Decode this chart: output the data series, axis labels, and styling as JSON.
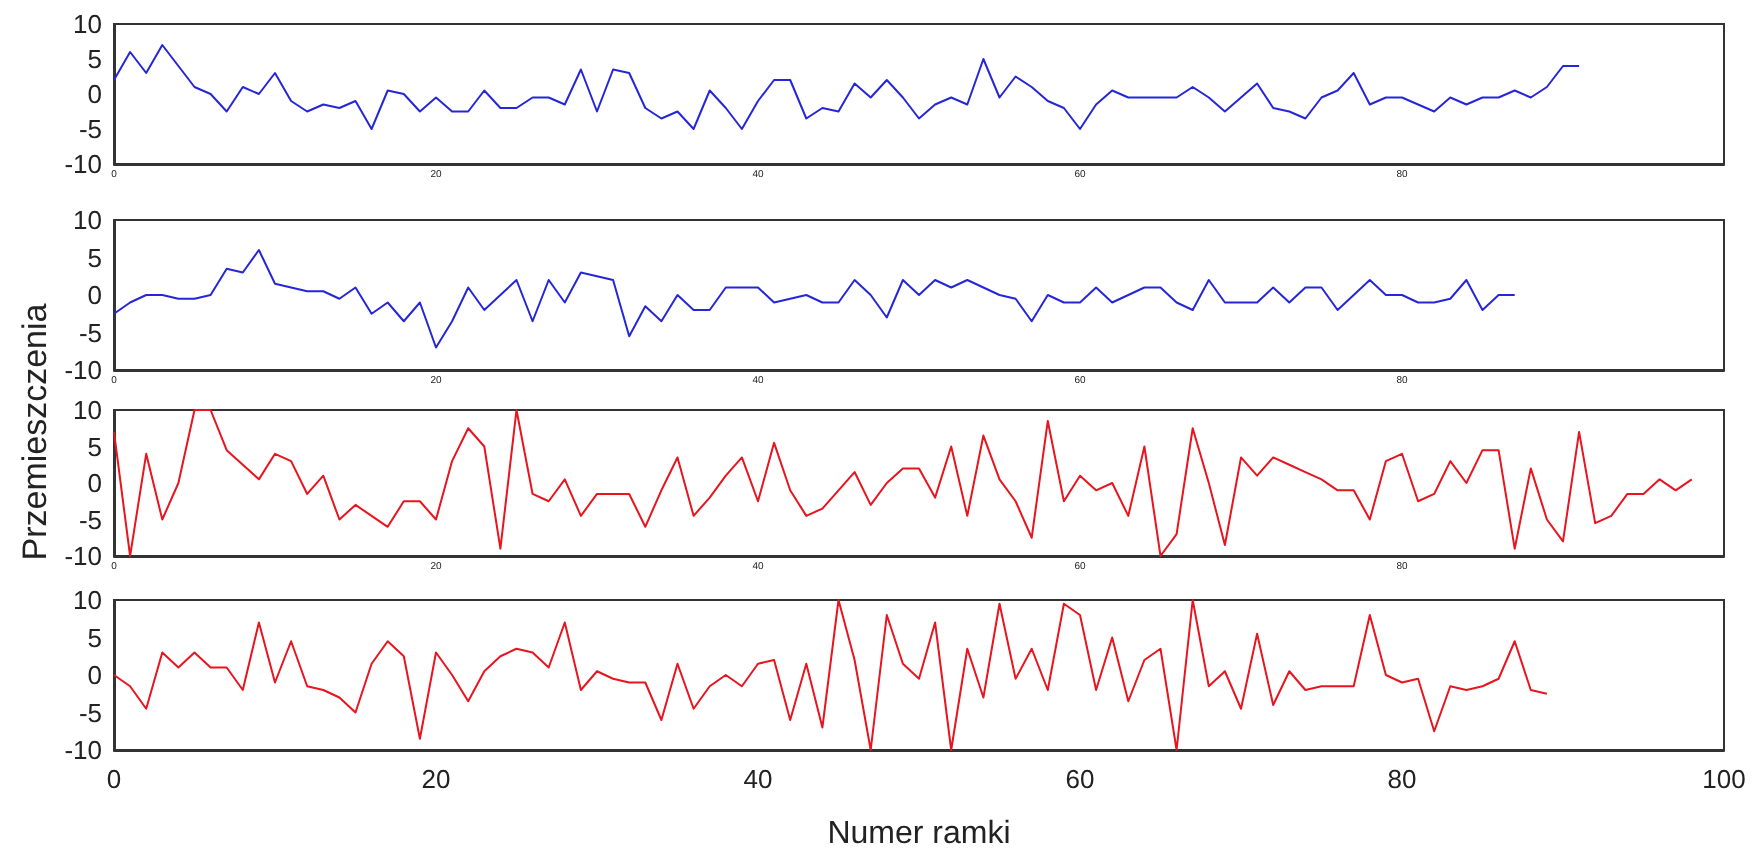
{
  "chart_data": [
    {
      "type": "line",
      "ylabel": "Przemieszczenia",
      "xlim": [
        0,
        100
      ],
      "xticks": [
        0,
        20,
        40,
        60,
        80
      ],
      "ylim": [
        -10,
        10
      ],
      "yticks": [
        -10,
        -5,
        0,
        5,
        10
      ],
      "series": [
        {
          "color": "#2626d9",
          "x": [
            0,
            1,
            2,
            3,
            4,
            5,
            6,
            7,
            8,
            9,
            10,
            11,
            12,
            13,
            14,
            15,
            16,
            17,
            18,
            19,
            20,
            21,
            22,
            23,
            24,
            25,
            26,
            27,
            28,
            29,
            30,
            31,
            32,
            33,
            34,
            35,
            36,
            37,
            38,
            39,
            40,
            41,
            42,
            43,
            44,
            45,
            46,
            47,
            48,
            49,
            50,
            51,
            52,
            53,
            54,
            55,
            56,
            57,
            58,
            59,
            60,
            61,
            62,
            63,
            64,
            65,
            66,
            67,
            68,
            69,
            70,
            71,
            72,
            73,
            74,
            75,
            76,
            77,
            78,
            79,
            80,
            81,
            82,
            83,
            84,
            85,
            86,
            87,
            88,
            89,
            90,
            91
          ],
          "values": [
            2,
            6,
            3,
            7,
            4,
            1,
            0,
            -2.5,
            1,
            0,
            3,
            -1,
            -2.5,
            -1.5,
            -2,
            -1,
            -5,
            0.5,
            0,
            -2.5,
            -0.5,
            -2.5,
            -2.5,
            0.5,
            -2,
            -2,
            -0.5,
            -0.5,
            -1.5,
            3.5,
            -2.5,
            3.5,
            3,
            -2,
            -3.5,
            -2.5,
            -5,
            0.5,
            -2,
            -5,
            -1,
            2,
            2,
            -3.5,
            -2,
            -2.5,
            1.5,
            -0.5,
            2,
            -0.5,
            -3.5,
            -1.5,
            -0.5,
            -1.5,
            5,
            -0.5,
            2.5,
            1,
            -1,
            -2,
            -5,
            -1.5,
            0.5,
            -0.5,
            -0.5,
            -0.5,
            -0.5,
            1,
            -0.5,
            -2.5,
            -0.5,
            1.5,
            -2,
            -2.5,
            -3.5,
            -0.5,
            0.5,
            3,
            -1.5,
            -0.5,
            -0.5,
            -1.5,
            -2.5,
            -0.5,
            -1.5,
            -0.5,
            -0.5,
            0.5,
            -0.5,
            1,
            4,
            4
          ]
        }
      ]
    },
    {
      "type": "line",
      "xlim": [
        0,
        100
      ],
      "xticks": [
        0,
        20,
        40,
        60,
        80
      ],
      "ylim": [
        -10,
        10
      ],
      "yticks": [
        -10,
        -5,
        0,
        5,
        10
      ],
      "series": [
        {
          "color": "#2626d9",
          "x": [
            0,
            1,
            2,
            3,
            4,
            5,
            6,
            7,
            8,
            9,
            10,
            11,
            12,
            13,
            14,
            15,
            16,
            17,
            18,
            19,
            20,
            21,
            22,
            23,
            24,
            25,
            26,
            27,
            28,
            29,
            30,
            31,
            32,
            33,
            34,
            35,
            36,
            37,
            38,
            39,
            40,
            41,
            42,
            43,
            44,
            45,
            46,
            47,
            48,
            49,
            50,
            51,
            52,
            53,
            54,
            55,
            56,
            57,
            58,
            59,
            60,
            61,
            62,
            63,
            64,
            65,
            66,
            67,
            68,
            69,
            70,
            71,
            72,
            73,
            74,
            75,
            76,
            77,
            78,
            79,
            80,
            81,
            82,
            83,
            84,
            85,
            86,
            87
          ],
          "values": [
            -2.5,
            -1,
            0,
            0,
            -0.5,
            -0.5,
            0,
            3.5,
            3,
            6,
            1.5,
            1,
            0.5,
            0.5,
            -0.5,
            1,
            -2.5,
            -1,
            -3.5,
            -1,
            -7,
            -3.5,
            1,
            -2,
            0,
            2,
            -3.5,
            2,
            -1,
            3,
            2.5,
            2,
            -5.5,
            -1.5,
            -3.5,
            0,
            -2,
            -2,
            1,
            1,
            1,
            -1,
            -0.5,
            0,
            -1,
            -1,
            2,
            0,
            -3,
            2,
            0,
            2,
            1,
            2,
            1,
            0,
            -0.5,
            -3.5,
            0,
            -1,
            -1,
            1,
            -1,
            0,
            1,
            1,
            -1,
            -2,
            2,
            -1,
            -1,
            -1,
            1,
            -1,
            1,
            1,
            -2,
            0,
            2,
            0,
            0,
            -1,
            -1,
            -0.5,
            2,
            -2,
            0,
            0
          ]
        }
      ]
    },
    {
      "type": "line",
      "xlim": [
        0,
        100
      ],
      "xticks": [
        0,
        20,
        40,
        60,
        80
      ],
      "ylim": [
        -10,
        10
      ],
      "yticks": [
        -10,
        -5,
        0,
        5,
        10
      ],
      "series": [
        {
          "color": "#e8141e",
          "x": [
            0,
            1,
            2,
            3,
            4,
            5,
            6,
            7,
            8,
            9,
            10,
            11,
            12,
            13,
            14,
            15,
            16,
            17,
            18,
            19,
            20,
            21,
            22,
            23,
            24,
            25,
            26,
            27,
            28,
            29,
            30,
            31,
            32,
            33,
            34,
            35,
            36,
            37,
            38,
            39,
            40,
            41,
            42,
            43,
            44,
            45,
            46,
            47,
            48,
            49,
            50,
            51,
            52,
            53,
            54,
            55,
            56,
            57,
            58,
            59,
            60,
            61,
            62,
            63,
            64,
            65,
            66,
            67,
            68,
            69,
            70,
            71,
            72,
            73,
            74,
            75,
            76,
            77,
            78,
            79,
            80,
            81,
            82,
            83,
            84,
            85,
            86,
            87,
            88,
            89,
            90,
            91,
            92,
            93,
            94,
            95,
            96,
            97,
            98
          ],
          "values": [
            7,
            -10,
            4,
            -5,
            0,
            10,
            10,
            4.5,
            2.5,
            0.5,
            4,
            3,
            -1.5,
            1,
            -5,
            -3,
            -4.5,
            -6,
            -2.5,
            -2.5,
            -5,
            3,
            7.5,
            5,
            -9,
            10,
            -1.5,
            -2.5,
            0.5,
            -4.5,
            -1.5,
            -1.5,
            -1.5,
            -6,
            -1,
            3.5,
            -4.5,
            -2,
            1,
            3.5,
            -2.5,
            5.5,
            -1,
            -4.5,
            -3.5,
            -1,
            1.5,
            -3,
            0,
            2,
            2,
            -2,
            5,
            -4.5,
            6.5,
            0.5,
            -2.5,
            -7.5,
            8.5,
            -2.5,
            1,
            -1,
            0,
            -4.5,
            5,
            -10,
            -7,
            7.5,
            0,
            -8.5,
            3.5,
            1,
            3.5,
            2.5,
            1.5,
            0.5,
            -1,
            -1,
            -5,
            3,
            4,
            -2.5,
            -1.5,
            3,
            0,
            4.5,
            4.5,
            -9,
            2,
            -5,
            -8,
            7,
            -5.5,
            -4.5,
            -1.5,
            -1.5,
            0.5,
            -1,
            0.5
          ]
        }
      ]
    },
    {
      "type": "line",
      "xlabel": "Numer ramki",
      "xlim": [
        0,
        100
      ],
      "xticks": [
        0,
        20,
        40,
        60,
        80,
        100
      ],
      "ylim": [
        -10,
        10
      ],
      "yticks": [
        -10,
        -5,
        0,
        5,
        10
      ],
      "series": [
        {
          "color": "#e8141e",
          "x": [
            0,
            1,
            2,
            3,
            4,
            5,
            6,
            7,
            8,
            9,
            10,
            11,
            12,
            13,
            14,
            15,
            16,
            17,
            18,
            19,
            20,
            21,
            22,
            23,
            24,
            25,
            26,
            27,
            28,
            29,
            30,
            31,
            32,
            33,
            34,
            35,
            36,
            37,
            38,
            39,
            40,
            41,
            42,
            43,
            44,
            45,
            46,
            47,
            48,
            49,
            50,
            51,
            52,
            53,
            54,
            55,
            56,
            57,
            58,
            59,
            60,
            61,
            62,
            63,
            64,
            65,
            66,
            67,
            68,
            69,
            70,
            71,
            72,
            73,
            74,
            75,
            76,
            77,
            78,
            79,
            80,
            81,
            82,
            83,
            84,
            85,
            86,
            87,
            88,
            89
          ],
          "values": [
            0,
            -1.5,
            -4.5,
            3,
            1,
            3,
            1,
            1,
            -2,
            7,
            -1,
            4.5,
            -1.5,
            -2,
            -3,
            -5,
            1.5,
            4.5,
            2.5,
            -8.5,
            3,
            0,
            -3.5,
            0.5,
            2.5,
            3.5,
            3,
            1,
            7,
            -2,
            0.5,
            -0.5,
            -1,
            -1,
            -6,
            1.5,
            -4.5,
            -1.5,
            0,
            -1.5,
            1.5,
            2,
            -6,
            1.5,
            -7,
            10,
            2,
            -10,
            8,
            1.5,
            -0.5,
            7,
            -10,
            3.5,
            -3,
            9.5,
            -0.5,
            3.5,
            -2,
            9.5,
            8,
            -2,
            5,
            -3.5,
            2,
            3.5,
            -10,
            10,
            -1.5,
            0.5,
            -4.5,
            5.5,
            -4,
            0.5,
            -2,
            -1.5,
            -1.5,
            -1.5,
            8,
            0,
            -1,
            -0.5,
            -7.5,
            -1.5,
            -2,
            -1.5,
            -0.5,
            4.5,
            -2,
            -2.5
          ]
        }
      ]
    }
  ]
}
